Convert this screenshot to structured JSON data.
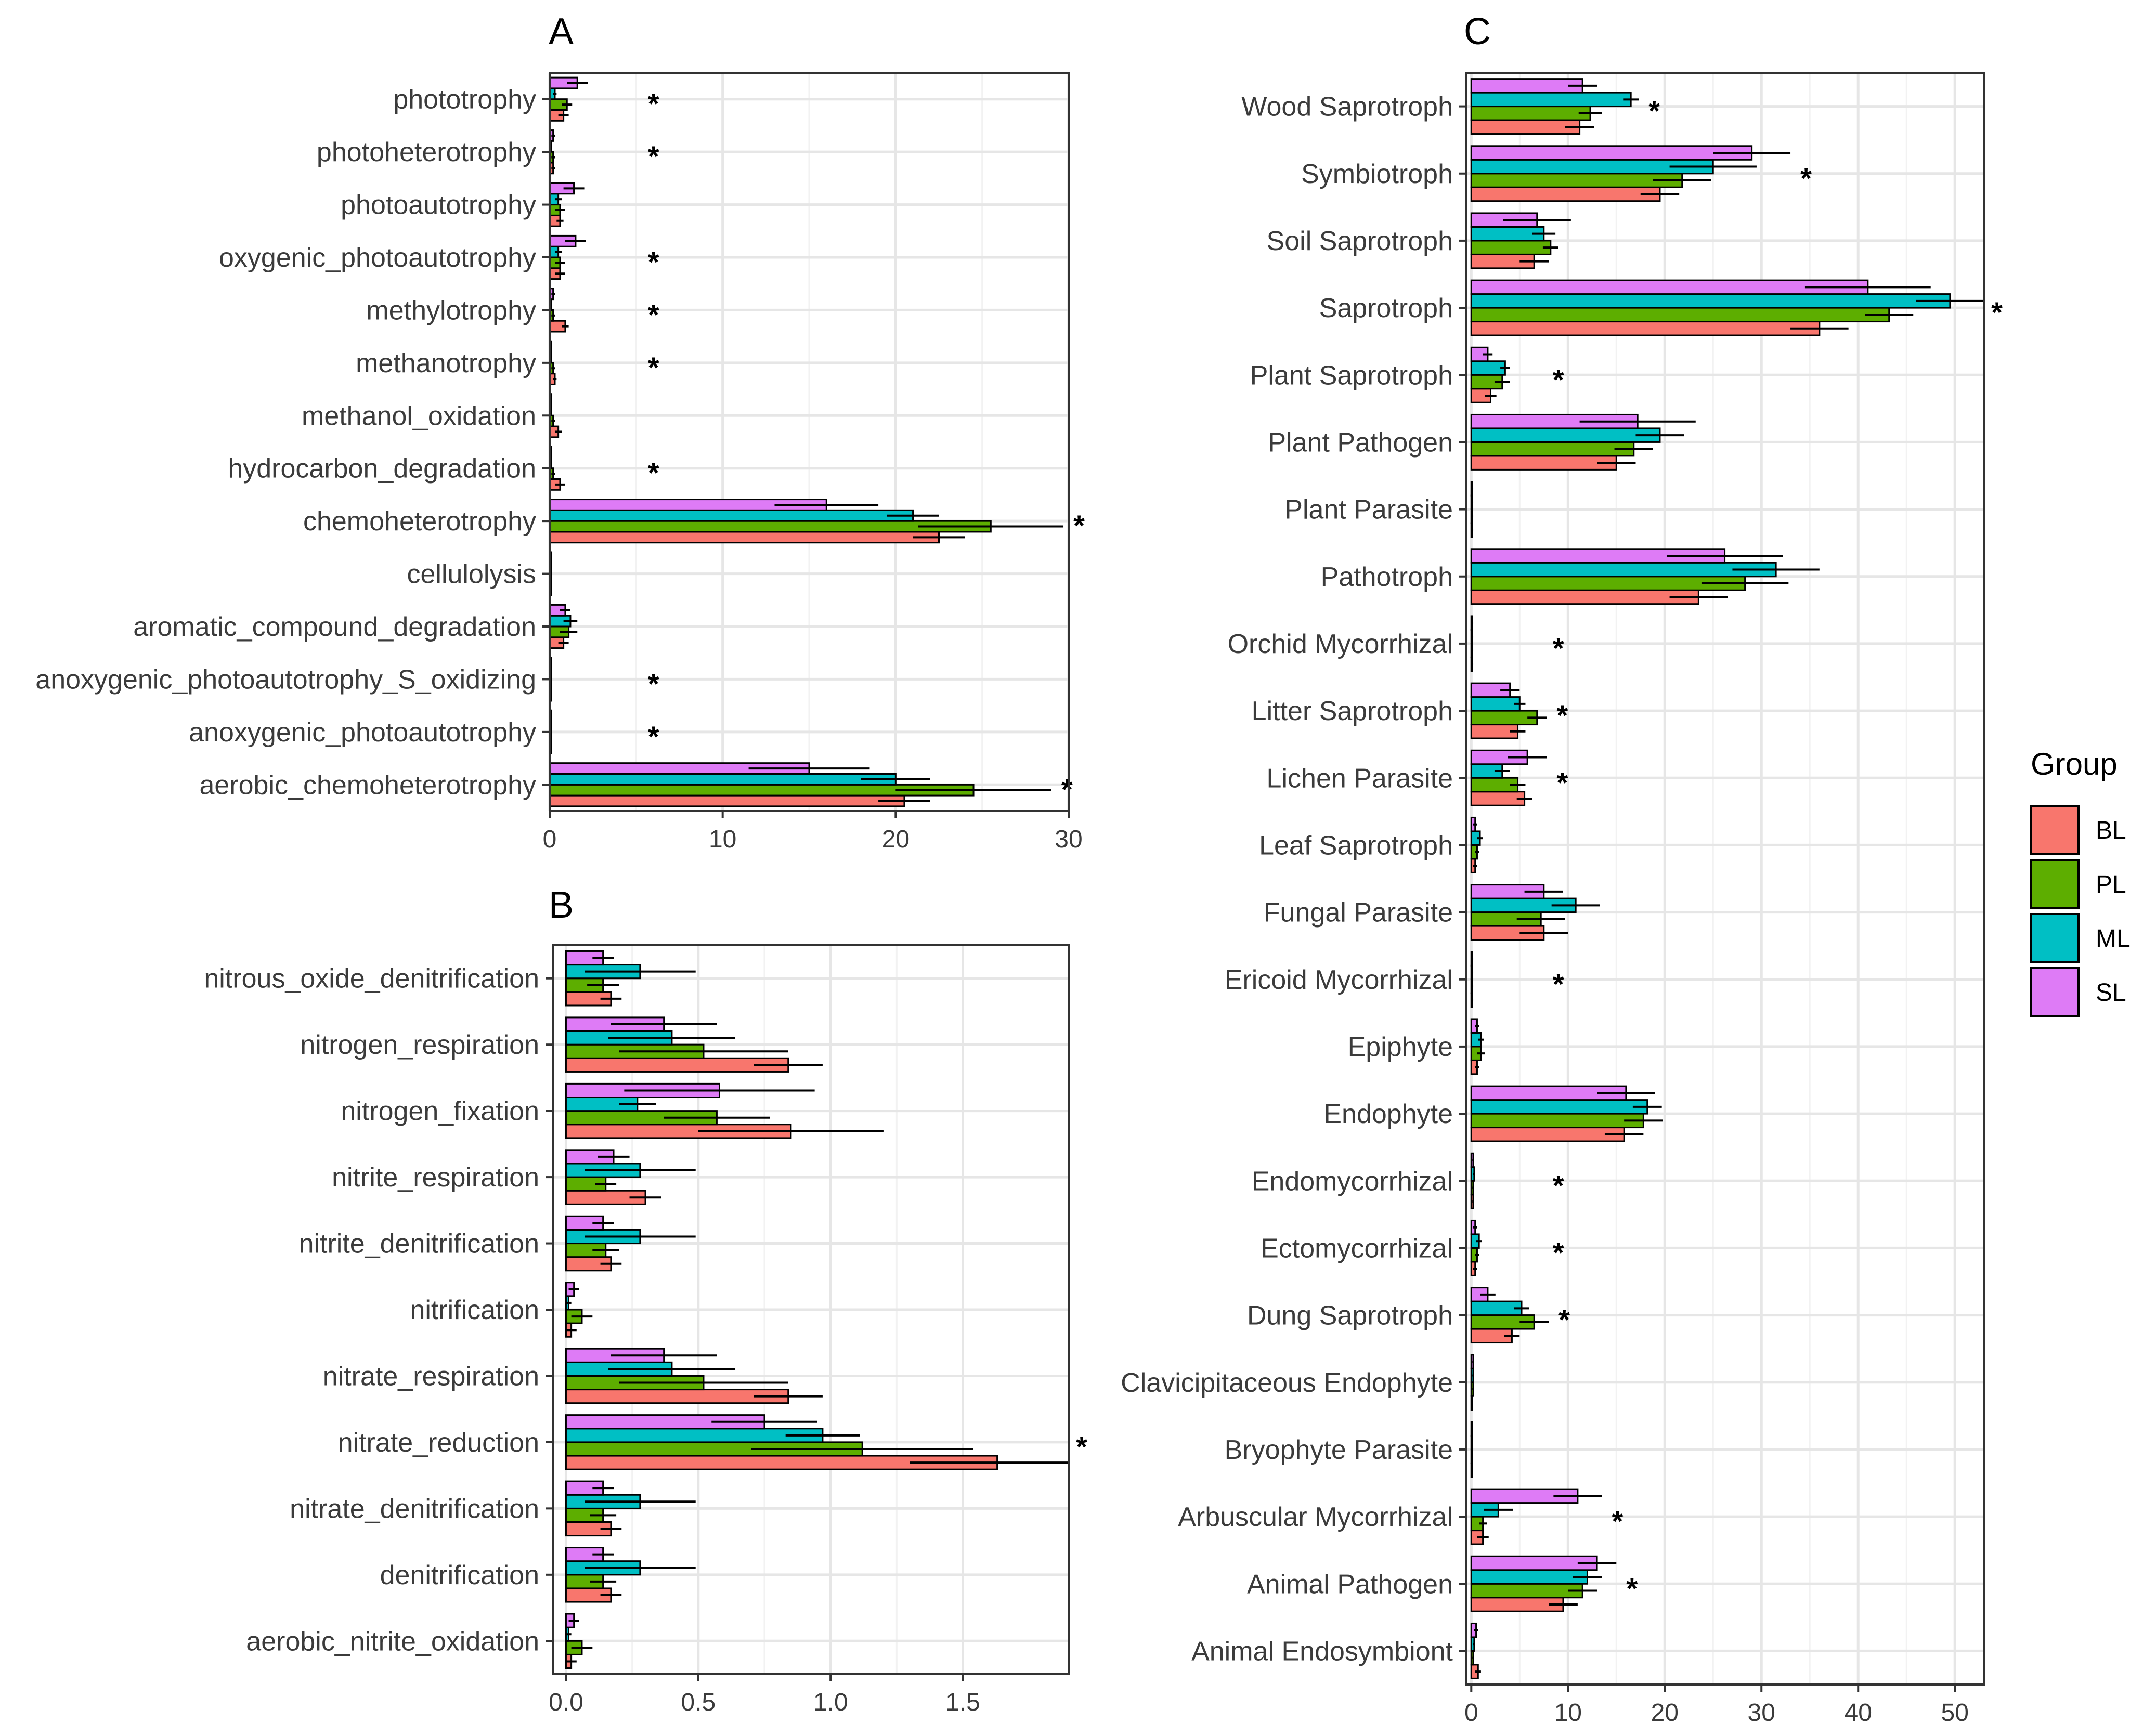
{
  "colors": {
    "BL": "#F8766D",
    "PL": "#5DAE00",
    "ML": "#00BFC4",
    "SL": "#DE7BF6"
  },
  "legend": {
    "title": "Group",
    "items": [
      "BL",
      "PL",
      "ML",
      "SL"
    ]
  },
  "chart_data": [
    {
      "panel": "A",
      "type": "bar",
      "orientation": "horizontal",
      "xlim": [
        0,
        30
      ],
      "ticks": [
        0,
        10,
        20,
        30
      ],
      "tick_labels": [
        "0",
        "10",
        "20",
        "30"
      ],
      "categories": [
        "phototrophy",
        "photoheterotrophy",
        "photoautotrophy",
        "oxygenic_photoautotrophy",
        "methylotrophy",
        "methanotrophy",
        "methanol_oxidation",
        "hydrocarbon_degradation",
        "chemoheterotrophy",
        "cellulolysis",
        "aromatic_compound_degradation",
        "anoxygenic_photoautotrophy_S_oxidizing",
        "anoxygenic_photoautotrophy",
        "aerobic_chemoheterotrophy"
      ],
      "series": [
        {
          "name": "BL",
          "values": [
            0.8,
            0.2,
            0.6,
            0.6,
            0.9,
            0.3,
            0.5,
            0.6,
            22.5,
            0.1,
            0.8,
            0.1,
            0.1,
            20.5
          ],
          "errors": [
            0.3,
            0.1,
            0.2,
            0.3,
            0.2,
            0.1,
            0.2,
            0.3,
            1.5,
            0.05,
            0.3,
            0.05,
            0.05,
            1.5
          ]
        },
        {
          "name": "PL",
          "values": [
            1.0,
            0.2,
            0.6,
            0.6,
            0.2,
            0.2,
            0.2,
            0.2,
            25.5,
            0.1,
            1.1,
            0.1,
            0.1,
            24.5
          ],
          "errors": [
            0.3,
            0.1,
            0.3,
            0.3,
            0.1,
            0.1,
            0.1,
            0.1,
            4.2,
            0.05,
            0.5,
            0.05,
            0.05,
            4.5
          ]
        },
        {
          "name": "ML",
          "values": [
            0.3,
            0.1,
            0.5,
            0.5,
            0.1,
            0.1,
            0.1,
            0.1,
            21.0,
            0.1,
            1.2,
            0.1,
            0.1,
            20.0
          ],
          "errors": [
            0.1,
            0.05,
            0.2,
            0.2,
            0.05,
            0.05,
            0.05,
            0.05,
            1.5,
            0.05,
            0.4,
            0.05,
            0.05,
            2.0
          ]
        },
        {
          "name": "SL",
          "values": [
            1.6,
            0.2,
            1.4,
            1.5,
            0.2,
            0.1,
            0.1,
            0.1,
            16.0,
            0.1,
            0.9,
            0.1,
            0.1,
            15.0
          ],
          "errors": [
            0.6,
            0.1,
            0.6,
            0.6,
            0.1,
            0.05,
            0.05,
            0.05,
            3.0,
            0.05,
            0.3,
            0.05,
            0.05,
            3.5
          ]
        }
      ],
      "significant": [
        "phototrophy",
        "photoheterotrophy",
        "oxygenic_photoautotrophy",
        "methylotrophy",
        "methanotrophy",
        "hydrocarbon_degradation",
        "chemoheterotrophy",
        "anoxygenic_photoautotrophy_S_oxidizing",
        "anoxygenic_photoautotrophy",
        "aerobic_chemoheterotrophy"
      ],
      "significance_marker": "*"
    },
    {
      "panel": "B",
      "type": "bar",
      "orientation": "horizontal",
      "xlim": [
        -0.05,
        1.9
      ],
      "ticks": [
        0,
        0.5,
        1,
        1.5
      ],
      "tick_labels": [
        "0.0",
        "0.5",
        "1.0",
        "1.5"
      ],
      "categories": [
        "nitrous_oxide_denitrification",
        "nitrogen_respiration",
        "nitrogen_fixation",
        "nitrite_respiration",
        "nitrite_denitrification",
        "nitrification",
        "nitrate_respiration",
        "nitrate_reduction",
        "nitrate_denitrification",
        "denitrification",
        "aerobic_nitrite_oxidation"
      ],
      "series": [
        {
          "name": "BL",
          "values": [
            0.17,
            0.84,
            0.85,
            0.3,
            0.17,
            0.02,
            0.84,
            1.63,
            0.17,
            0.17,
            0.02
          ],
          "errors": [
            0.04,
            0.13,
            0.35,
            0.06,
            0.04,
            0.02,
            0.13,
            0.33,
            0.04,
            0.04,
            0.02
          ]
        },
        {
          "name": "PL",
          "values": [
            0.14,
            0.52,
            0.57,
            0.15,
            0.15,
            0.06,
            0.52,
            1.12,
            0.14,
            0.14,
            0.06
          ],
          "errors": [
            0.06,
            0.32,
            0.2,
            0.04,
            0.05,
            0.04,
            0.32,
            0.42,
            0.05,
            0.05,
            0.04
          ]
        },
        {
          "name": "ML",
          "values": [
            0.28,
            0.4,
            0.27,
            0.28,
            0.28,
            0.01,
            0.4,
            0.97,
            0.28,
            0.28,
            0.01
          ],
          "errors": [
            0.21,
            0.24,
            0.07,
            0.21,
            0.21,
            0.01,
            0.24,
            0.14,
            0.21,
            0.21,
            0.01
          ]
        },
        {
          "name": "SL",
          "values": [
            0.14,
            0.37,
            0.58,
            0.18,
            0.14,
            0.03,
            0.37,
            0.75,
            0.14,
            0.14,
            0.03
          ],
          "errors": [
            0.04,
            0.2,
            0.36,
            0.06,
            0.04,
            0.02,
            0.2,
            0.2,
            0.04,
            0.04,
            0.02
          ]
        }
      ],
      "significant": [
        "nitrate_reduction"
      ],
      "significance_marker": "*"
    },
    {
      "panel": "C",
      "type": "bar",
      "orientation": "horizontal",
      "xlim": [
        -0.5,
        53
      ],
      "ticks": [
        0,
        10,
        20,
        30,
        40,
        50
      ],
      "tick_labels": [
        "0",
        "10",
        "20",
        "30",
        "40",
        "50"
      ],
      "categories": [
        "Wood Saprotroph",
        "Symbiotroph",
        "Soil Saprotroph",
        "Saprotroph",
        "Plant Saprotroph",
        "Plant Pathogen",
        "Plant Parasite",
        "Pathotroph",
        "Orchid Mycorrhizal",
        "Litter Saprotroph",
        "Lichen Parasite",
        "Leaf Saprotroph",
        "Fungal Parasite",
        "Ericoid Mycorrhizal",
        "Epiphyte",
        "Endophyte",
        "Endomycorrhizal",
        "Ectomycorrhizal",
        "Dung Saprotroph",
        "Clavicipitaceous Endophyte",
        "Bryophyte Parasite",
        "Arbuscular Mycorrhizal",
        "Animal Pathogen",
        "Animal Endosymbiont"
      ],
      "series": [
        {
          "name": "BL",
          "values": [
            11.2,
            19.5,
            6.5,
            36.0,
            2.0,
            15.0,
            0.1,
            23.5,
            0.1,
            4.8,
            5.5,
            0.4,
            7.5,
            0.1,
            0.6,
            15.8,
            0.2,
            0.4,
            4.2,
            0.1,
            0.1,
            1.2,
            9.5,
            0.7
          ],
          "errors": [
            1.5,
            2.0,
            1.5,
            3.0,
            0.6,
            2.0,
            0.1,
            3.0,
            0.1,
            0.8,
            0.8,
            0.2,
            2.5,
            0.1,
            0.2,
            2.0,
            0.1,
            0.2,
            0.8,
            0.05,
            0.05,
            0.6,
            1.5,
            0.3
          ]
        },
        {
          "name": "PL",
          "values": [
            12.3,
            21.8,
            8.2,
            43.2,
            3.2,
            16.8,
            0.1,
            28.3,
            0.1,
            6.8,
            4.8,
            0.6,
            7.2,
            0.1,
            1.0,
            17.8,
            0.2,
            0.6,
            6.5,
            0.2,
            0.1,
            1.2,
            11.5,
            0.2
          ],
          "errors": [
            1.2,
            3.0,
            0.8,
            2.5,
            0.8,
            2.0,
            0.1,
            4.5,
            0.1,
            1.0,
            0.8,
            0.2,
            2.5,
            0.1,
            0.4,
            2.0,
            0.1,
            0.2,
            1.5,
            0.1,
            0.05,
            0.4,
            1.5,
            0.1
          ]
        },
        {
          "name": "ML",
          "values": [
            16.5,
            25.0,
            7.5,
            49.5,
            3.5,
            19.5,
            0.1,
            31.5,
            0.1,
            5.0,
            3.2,
            0.9,
            10.8,
            0.1,
            1.0,
            18.2,
            0.3,
            0.8,
            5.2,
            0.2,
            0.1,
            2.8,
            12.0,
            0.3
          ],
          "errors": [
            0.8,
            4.5,
            1.2,
            3.5,
            0.5,
            2.5,
            0.1,
            4.5,
            0.1,
            0.6,
            0.8,
            0.3,
            2.5,
            0.1,
            0.3,
            1.5,
            0.1,
            0.3,
            0.8,
            0.1,
            0.05,
            1.5,
            1.5,
            0.1
          ]
        },
        {
          "name": "SL",
          "values": [
            11.5,
            29.0,
            6.8,
            41.0,
            1.7,
            17.2,
            0.1,
            26.2,
            0.1,
            4.0,
            5.8,
            0.4,
            7.5,
            0.1,
            0.6,
            16.0,
            0.2,
            0.4,
            1.7,
            0.2,
            0.1,
            11.0,
            13.0,
            0.5
          ],
          "errors": [
            1.5,
            4.0,
            3.5,
            6.5,
            0.5,
            6.0,
            0.1,
            6.0,
            0.1,
            1.0,
            2.0,
            0.2,
            2.0,
            0.1,
            0.2,
            3.0,
            0.1,
            0.2,
            0.8,
            0.1,
            0.05,
            2.5,
            2.0,
            0.2
          ]
        }
      ],
      "significant": [
        "Wood Saprotroph",
        "Symbiotroph",
        "Saprotroph",
        "Plant Saprotroph",
        "Orchid Mycorrhizal",
        "Litter Saprotroph",
        "Lichen Parasite",
        "Ericoid Mycorrhizal",
        "Endomycorrhizal",
        "Ectomycorrhizal",
        "Dung Saprotroph",
        "Arbuscular Mycorrhizal",
        "Animal Pathogen"
      ],
      "significance_marker": "*"
    }
  ]
}
